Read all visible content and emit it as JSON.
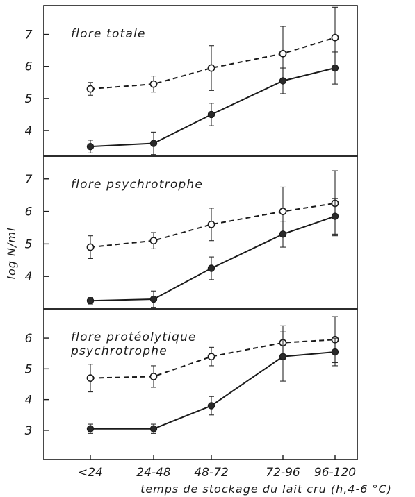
{
  "chart_data": {
    "type": "line",
    "xlabel": "temps de stockage du lait cru (h,4-6 °C)",
    "ylabel": "log N/ml",
    "categories": [
      "<24",
      "24-48",
      "48-72",
      "72-96",
      "96-120"
    ],
    "panels": [
      {
        "title_lines": [
          "flore totale"
        ],
        "ylim": [
          3.2,
          7.9
        ],
        "yticks": [
          4,
          5,
          6,
          7
        ],
        "series": [
          {
            "style": "dashed",
            "marker": "open",
            "values": [
              5.3,
              5.45,
              5.95,
              6.4,
              6.9
            ],
            "errors": [
              0.2,
              0.25,
              0.7,
              0.85,
              0.95
            ]
          },
          {
            "style": "solid",
            "marker": "filled",
            "values": [
              3.5,
              3.6,
              4.5,
              5.55,
              5.95
            ],
            "errors": [
              0.2,
              0.35,
              0.35,
              0.4,
              0.5
            ]
          }
        ]
      },
      {
        "title_lines": [
          "flore psychrotrophe"
        ],
        "ylim": [
          3.0,
          7.7
        ],
        "yticks": [
          4,
          5,
          6,
          7
        ],
        "series": [
          {
            "style": "dashed",
            "marker": "open",
            "values": [
              4.9,
              5.1,
              5.6,
              6.0,
              6.25
            ],
            "errors": [
              0.35,
              0.25,
              0.5,
              0.75,
              1.0
            ]
          },
          {
            "style": "solid",
            "marker": "filled",
            "values": [
              3.25,
              3.3,
              4.25,
              5.3,
              5.85
            ],
            "errors": [
              0.1,
              0.25,
              0.35,
              0.4,
              0.55
            ]
          }
        ]
      },
      {
        "title_lines": [
          "flore protéolytique",
          "psychrotrophe"
        ],
        "ylim": [
          2.05,
          6.95
        ],
        "yticks": [
          3,
          4,
          5,
          6
        ],
        "series": [
          {
            "style": "dashed",
            "marker": "open",
            "values": [
              4.7,
              4.75,
              5.4,
              5.85,
              5.95
            ],
            "errors": [
              0.45,
              0.35,
              0.3,
              0.55,
              0.75
            ]
          },
          {
            "style": "solid",
            "marker": "filled",
            "values": [
              3.05,
              3.05,
              3.8,
              5.4,
              5.55
            ],
            "errors": [
              0.15,
              0.15,
              0.3,
              0.8,
              0.45
            ]
          }
        ]
      }
    ]
  }
}
